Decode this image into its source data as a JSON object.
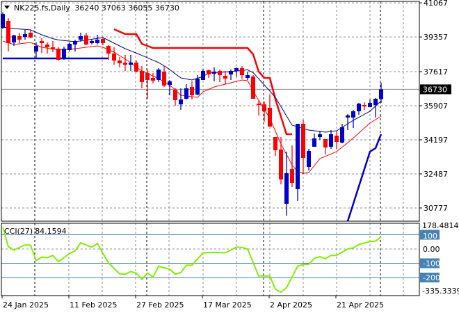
{
  "header": {
    "symbol": "NK225.fs,Daily",
    "ohlc": "36240 37063 36055 36730"
  },
  "colors": {
    "bull": "#0000c8",
    "bear": "#ff0000",
    "ma_fast": "#000080",
    "ma_slow": "#ff0000",
    "cci": "#80f000",
    "level": "#4682b4",
    "grid": "#8c8c9c"
  },
  "chart_data": [
    {
      "type": "candlestick",
      "title": "NK225.fs,Daily",
      "price_axis_ticks": [
        41067,
        39357,
        37617,
        35907,
        34197,
        32487,
        30777
      ],
      "current_price_label": "36730",
      "ylim": [
        30600,
        41200
      ],
      "x_tick_labels": [
        "24 Jan 2025",
        "11 Feb 2025",
        "27 Feb 2025",
        "17 Mar 2025",
        "2 Apr 2025",
        "21 Apr 2025"
      ],
      "x_tick_bars": [
        0,
        12,
        24,
        36,
        48,
        60
      ],
      "ohlc": [
        [
          39816,
          40600,
          39750,
          40514
        ],
        [
          40165,
          40305,
          38629,
          39048
        ],
        [
          39083,
          39467,
          38908,
          39432
        ],
        [
          39397,
          39572,
          39048,
          39223
        ],
        [
          39362,
          39711,
          39223,
          39502
        ],
        [
          39572,
          39746,
          39292,
          39327
        ],
        [
          38629,
          39083,
          38303,
          38908
        ],
        [
          39153,
          39292,
          38559,
          39048
        ],
        [
          38978,
          39083,
          38524,
          38838
        ],
        [
          38838,
          39153,
          38594,
          38768
        ],
        [
          38768,
          38838,
          38175,
          38210
        ],
        [
          38245,
          38873,
          38210,
          38768
        ],
        [
          38699,
          39083,
          38629,
          39013
        ],
        [
          38978,
          39223,
          38629,
          39153
        ],
        [
          39223,
          39572,
          39118,
          39397
        ],
        [
          39432,
          39572,
          38943,
          38978
        ],
        [
          39048,
          39223,
          38978,
          39153
        ],
        [
          39048,
          39467,
          38978,
          39223
        ],
        [
          39258,
          39362,
          38943,
          39048
        ],
        [
          38908,
          38943,
          38210,
          38524
        ],
        [
          38524,
          38838,
          37966,
          38175
        ],
        [
          38175,
          38350,
          37826,
          38036
        ],
        [
          38071,
          38455,
          37652,
          37966
        ],
        [
          37966,
          38455,
          37652,
          38071
        ],
        [
          38071,
          38175,
          37582,
          37617
        ],
        [
          37652,
          37896,
          36779,
          37093
        ],
        [
          37547,
          37722,
          36256,
          37198
        ],
        [
          37303,
          37547,
          37023,
          37163
        ],
        [
          37198,
          37791,
          37093,
          37722
        ],
        [
          37617,
          37896,
          36849,
          36919
        ],
        [
          36954,
          37198,
          36431,
          37128
        ],
        [
          36710,
          36779,
          35907,
          36186
        ],
        [
          35977,
          36779,
          35698,
          36221
        ],
        [
          36256,
          36989,
          36221,
          36779
        ],
        [
          36849,
          37128,
          36221,
          36431
        ],
        [
          36466,
          37442,
          36431,
          37267
        ],
        [
          37198,
          37757,
          37198,
          37652
        ],
        [
          37687,
          37722,
          37303,
          37477
        ],
        [
          37512,
          37826,
          37128,
          37617
        ],
        [
          37652,
          37722,
          37093,
          37442
        ],
        [
          37408,
          37652,
          36989,
          37268
        ],
        [
          37477,
          37722,
          37198,
          37652
        ],
        [
          37652,
          37826,
          37372,
          37791
        ],
        [
          37791,
          37896,
          37268,
          37442
        ],
        [
          37303,
          37617,
          37198,
          37442
        ],
        [
          37372,
          37442,
          36256,
          36256
        ],
        [
          36012,
          36151,
          35419,
          35942
        ],
        [
          35977,
          36116,
          35105,
          35628
        ],
        [
          35802,
          36466,
          34860,
          34860
        ],
        [
          34336,
          34336,
          33394,
          33673
        ],
        [
          33708,
          34336,
          31963,
          32208
        ],
        [
          30986,
          33603,
          30393,
          32522
        ],
        [
          32731,
          33917,
          31824,
          32033
        ],
        [
          31719,
          35000,
          31126,
          35000
        ],
        [
          35000,
          35210,
          32487,
          33290
        ],
        [
          32836,
          33743,
          32662,
          33638
        ],
        [
          33848,
          34511,
          33848,
          34267
        ],
        [
          34336,
          34651,
          34197,
          34476
        ],
        [
          34231,
          34231,
          33464,
          33813
        ],
        [
          33848,
          34686,
          33743,
          34476
        ],
        [
          34406,
          34651,
          33743,
          34092
        ],
        [
          34057,
          35000,
          34022,
          34825
        ],
        [
          35314,
          35488,
          34686,
          35419
        ],
        [
          35314,
          35698,
          34790,
          35628
        ],
        [
          35628,
          36047,
          35453,
          36012
        ],
        [
          35942,
          36082,
          35698,
          35872
        ],
        [
          35837,
          36221,
          35837,
          36047
        ],
        [
          35942,
          36291,
          35314,
          36256
        ],
        [
          36240,
          37063,
          36055,
          36730
        ]
      ],
      "ma_fast": [
        39851,
        39816,
        39781,
        39758,
        39734,
        39711,
        39589,
        39467,
        39369,
        39271,
        39207,
        39177,
        39148,
        39118,
        39160,
        39202,
        39243,
        39285,
        39327,
        39188,
        39048,
        38908,
        38769,
        38657,
        38546,
        38430,
        38311,
        38191,
        38071,
        37908,
        37721,
        37512,
        37303,
        37250,
        37198,
        37285,
        37373,
        37547,
        37565,
        37582,
        37600,
        37617,
        37647,
        37677,
        37707,
        37568,
        37261,
        36954,
        36640,
        36326,
        35861,
        35395,
        34930,
        34848,
        34767,
        34685,
        34650,
        34616,
        34581,
        34616,
        34651,
        34825,
        35000,
        35174,
        35325,
        35477,
        35628,
        35890,
        36151
      ],
      "ma_slow": [
        39153,
        39066,
        38978,
        39013,
        39048,
        39083,
        38960,
        38838,
        38792,
        38745,
        38699,
        38722,
        38746,
        38769,
        38804,
        38839,
        38873,
        38908,
        38838,
        38716,
        38594,
        38420,
        38245,
        38071,
        37838,
        37657,
        37527,
        37398,
        37268,
        37100,
        36933,
        36710,
        36431,
        36396,
        36361,
        36326,
        36605,
        36727,
        36849,
        36919,
        36989,
        37059,
        37129,
        37198,
        37163,
        36652,
        36173,
        35726,
        35279,
        34633,
        33987,
        33457,
        32926,
        32598,
        32507,
        32557,
        32906,
        33255,
        33371,
        33488,
        33604,
        33827,
        34050,
        34287,
        34536,
        34785,
        35034,
        35209,
        35383
      ],
      "stop_red": [
        null,
        null,
        null,
        null,
        null,
        null,
        null,
        null,
        null,
        null,
        null,
        null,
        null,
        null,
        null,
        null,
        null,
        null,
        null,
        null,
        39746,
        39624,
        39502,
        39502,
        39502,
        39013,
        38908,
        38803,
        38803,
        38803,
        38803,
        38803,
        38803,
        38803,
        38803,
        38803,
        38803,
        38803,
        38803,
        38803,
        38803,
        38803,
        38803,
        38803,
        38803,
        38489,
        37617,
        37303,
        37303,
        36235,
        35355,
        34476,
        34476,
        null,
        null,
        null,
        null,
        null,
        null,
        null,
        null,
        null,
        null,
        null,
        null,
        null,
        null,
        null,
        null
      ],
      "stop_blue": [
        38280,
        38280,
        38280,
        38280,
        38280,
        38280,
        38280,
        38280,
        38280,
        38280,
        38280,
        38280,
        38280,
        38280,
        38280,
        38280,
        38280,
        38280,
        38280,
        38280,
        null,
        null,
        null,
        null,
        null,
        null,
        null,
        null,
        null,
        null,
        null,
        null,
        null,
        null,
        null,
        null,
        null,
        null,
        null,
        null,
        null,
        null,
        null,
        null,
        null,
        null,
        null,
        null,
        null,
        null,
        null,
        null,
        null,
        null,
        null,
        null,
        null,
        null,
        null,
        null,
        null,
        null,
        30113,
        30985,
        31858,
        32730,
        33603,
        33778,
        34476
      ]
    },
    {
      "type": "line",
      "title": "CCI(27) 84.1594",
      "label": "CCI(27)",
      "last_value": "84.1594",
      "axis_max_label": "178.4814",
      "axis_min_label": "-335.3339",
      "ylim": [
        -335.3339,
        178.4814
      ],
      "levels": [
        {
          "value": 100,
          "label": "100"
        },
        {
          "value": 0,
          "label": "0.00"
        },
        {
          "value": -100,
          "label": "-100"
        },
        {
          "value": -200,
          "label": "-200"
        }
      ],
      "values": [
        153,
        16,
        -8,
        10,
        29,
        27,
        -81,
        -56,
        -61,
        -45,
        -89,
        -60,
        -32,
        -13,
        44,
        28,
        13,
        39,
        -30,
        -97,
        -135,
        -174,
        -177,
        -158,
        -169,
        -213,
        -169,
        -197,
        -121,
        -131,
        -142,
        -177,
        -165,
        -113,
        -113,
        -70,
        -27,
        -25,
        -24,
        -25,
        -27,
        -7,
        13,
        11,
        0,
        -95,
        -189,
        -189,
        -189,
        -282,
        -303,
        -271,
        -196,
        -121,
        -108,
        -108,
        -65,
        -53,
        -68,
        -45,
        -45,
        -22,
        0,
        8,
        32,
        42,
        52,
        56,
        84.1594
      ]
    }
  ]
}
